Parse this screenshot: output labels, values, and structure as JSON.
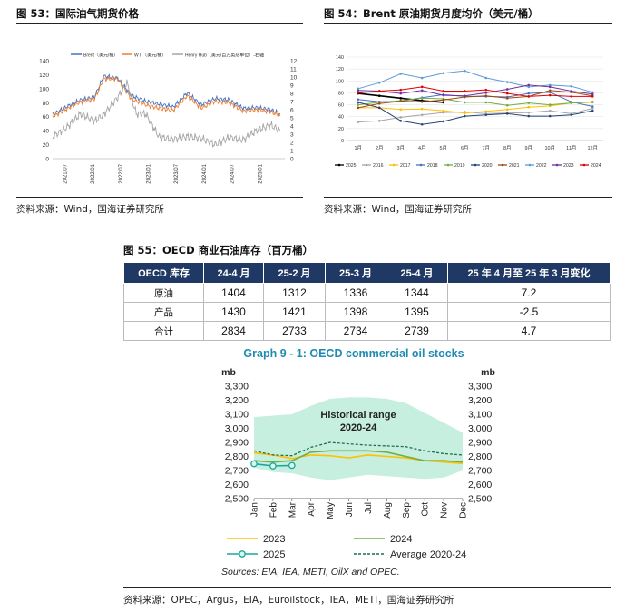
{
  "fig53": {
    "title": "图 53：国际油气期货价格",
    "source": "资料来源：Wind，国海证券研究所",
    "chart_data": {
      "type": "line",
      "x_tick_labels": [
        "2021/07",
        "2022/01",
        "2022/07",
        "2023/01",
        "2023/07",
        "2024/01",
        "2024/07",
        "2025/01"
      ],
      "y_left_ticks": [
        "0",
        "20",
        "40",
        "60",
        "80",
        "100",
        "120",
        "140"
      ],
      "y_right_ticks": [
        "0",
        "1",
        "2",
        "3",
        "4",
        "5",
        "6",
        "7",
        "8",
        "9",
        "10",
        "11",
        "12"
      ],
      "ylim_left": [
        0,
        140
      ],
      "ylim_right": [
        0,
        12
      ],
      "series": [
        {
          "name": "Brent（美元/桶）",
          "color": "#4472c4",
          "axis": "left",
          "x": [
            "2021/04",
            "2021/07",
            "2021/10",
            "2022/01",
            "2022/03",
            "2022/06",
            "2022/09",
            "2022/12",
            "2023/03",
            "2023/06",
            "2023/09",
            "2023/12",
            "2024/03",
            "2024/06",
            "2024/09",
            "2024/12",
            "2025/03",
            "2025/05"
          ],
          "values": [
            63,
            74,
            84,
            88,
            118,
            115,
            90,
            82,
            78,
            74,
            94,
            77,
            86,
            84,
            72,
            73,
            70,
            64
          ]
        },
        {
          "name": "WTI（美元/桶）",
          "color": "#ed7d31",
          "axis": "left",
          "x": [
            "2021/04",
            "2021/07",
            "2021/10",
            "2022/01",
            "2022/03",
            "2022/06",
            "2022/09",
            "2022/12",
            "2023/03",
            "2023/06",
            "2023/09",
            "2023/12",
            "2024/03",
            "2024/06",
            "2024/09",
            "2024/12",
            "2025/03",
            "2025/05"
          ],
          "values": [
            60,
            71,
            81,
            85,
            114,
            114,
            85,
            77,
            72,
            69,
            90,
            72,
            82,
            80,
            68,
            70,
            67,
            61
          ]
        },
        {
          "name": "Henry Hub（美元/百万英热单位）-右轴",
          "color": "#a5a5a5",
          "axis": "right",
          "x": [
            "2021/04",
            "2021/07",
            "2021/10",
            "2022/01",
            "2022/03",
            "2022/06",
            "2022/08",
            "2022/10",
            "2022/12",
            "2023/03",
            "2023/06",
            "2023/09",
            "2023/12",
            "2024/03",
            "2024/06",
            "2024/09",
            "2024/12",
            "2025/03",
            "2025/05"
          ],
          "values": [
            2.7,
            3.8,
            5.5,
            4.6,
            5.4,
            7.5,
            9.3,
            5.5,
            5.5,
            2.6,
            2.4,
            2.7,
            2.5,
            1.7,
            2.6,
            2.3,
            3.5,
            4.1,
            3.4
          ]
        }
      ]
    }
  },
  "fig54": {
    "title": "图 54：Brent 原油期货月度均价（美元/桶）",
    "source": "资料来源：Wind，国海证券研究所",
    "chart_data": {
      "type": "line",
      "categories": [
        "1月",
        "2月",
        "3月",
        "4月",
        "5月",
        "6月",
        "7月",
        "8月",
        "9月",
        "10月",
        "11月",
        "12月"
      ],
      "y_ticks": [
        "0",
        "20",
        "40",
        "60",
        "80",
        "100",
        "120",
        "140"
      ],
      "ylim": [
        0,
        140
      ],
      "series": [
        {
          "name": "2025",
          "color": "#000000",
          "values": [
            79,
            75,
            71,
            67,
            64,
            null,
            null,
            null,
            null,
            null,
            null,
            null
          ]
        },
        {
          "name": "2016",
          "color": "#a5a5a5",
          "values": [
            31,
            33,
            39,
            43,
            47,
            48,
            45,
            46,
            47,
            50,
            45,
            54
          ]
        },
        {
          "name": "2017",
          "color": "#ffc000",
          "values": [
            55,
            55,
            52,
            53,
            50,
            46,
            49,
            52,
            56,
            58,
            63,
            64
          ]
        },
        {
          "name": "2018",
          "color": "#4472c4",
          "values": [
            69,
            65,
            66,
            72,
            77,
            74,
            74,
            73,
            79,
            81,
            65,
            57
          ]
        },
        {
          "name": "2019",
          "color": "#70ad47",
          "values": [
            60,
            64,
            67,
            71,
            70,
            64,
            64,
            59,
            63,
            60,
            63,
            65
          ]
        },
        {
          "name": "2020",
          "color": "#264478",
          "values": [
            64,
            55,
            33,
            27,
            32,
            41,
            43,
            45,
            41,
            41,
            43,
            50
          ]
        },
        {
          "name": "2021",
          "color": "#9e480e",
          "values": [
            55,
            62,
            66,
            65,
            68,
            73,
            75,
            71,
            74,
            84,
            81,
            75
          ]
        },
        {
          "name": "2022",
          "color": "#5b9bd5",
          "values": [
            87,
            97,
            112,
            105,
            113,
            117,
            105,
            98,
            90,
            93,
            91,
            81
          ]
        },
        {
          "name": "2023",
          "color": "#7030a0",
          "values": [
            84,
            83,
            79,
            84,
            76,
            75,
            80,
            86,
            93,
            90,
            83,
            78
          ]
        },
        {
          "name": "2024",
          "color": "#e00000",
          "values": [
            80,
            83,
            85,
            90,
            83,
            83,
            85,
            79,
            74,
            76,
            74,
            74
          ]
        }
      ]
    }
  },
  "fig55": {
    "title": "图 55：OECD 商业石油库存（百万桶）",
    "headers": [
      "OECD 库存",
      "24-4 月",
      "25-2 月",
      "25-3 月",
      "25-4 月",
      "25 年 4 月至 25 年 3 月变化"
    ],
    "rows": [
      {
        "label": "原油",
        "cells": [
          "1404",
          "1312",
          "1336",
          "1344",
          "7.2"
        ]
      },
      {
        "label": "产品",
        "cells": [
          "1430",
          "1421",
          "1398",
          "1395",
          "-2.5"
        ]
      },
      {
        "label": "合计",
        "cells": [
          "2834",
          "2733",
          "2734",
          "2739",
          "4.7"
        ]
      }
    ]
  },
  "graph9": {
    "title": "Graph 9 - 1: OECD commercial oil stocks",
    "unit_left": "mb",
    "unit_right": "mb",
    "range_label_line1": "Historical range",
    "range_label_line2": "2020-24",
    "sources_note": "Sources: EIA, IEA, METI, OilX and OPEC.",
    "chart_data": {
      "type": "area",
      "categories": [
        "Jan",
        "Feb",
        "Mar",
        "Apr",
        "May",
        "Jun",
        "Jul",
        "Aug",
        "Sep",
        "Oct",
        "Nov",
        "Dec"
      ],
      "y_ticks": [
        "2,500",
        "2,600",
        "2,700",
        "2,800",
        "2,900",
        "3,000",
        "3,100",
        "3,200",
        "3,300"
      ],
      "ylim": [
        2500,
        3300
      ],
      "range_color": "#c6efdf",
      "range_low": [
        2720,
        2690,
        2680,
        2650,
        2630,
        2650,
        2670,
        2660,
        2650,
        2640,
        2650,
        2700
      ],
      "range_high": [
        3080,
        3090,
        3100,
        3160,
        3210,
        3220,
        3220,
        3210,
        3180,
        3110,
        3040,
        2970
      ],
      "series": [
        {
          "name": "2023",
          "color": "#ffc000",
          "values": [
            2825,
            2810,
            2785,
            2810,
            2805,
            2790,
            2810,
            2800,
            2790,
            2770,
            2760,
            2750
          ]
        },
        {
          "name": "2024",
          "color": "#70ad47",
          "values": [
            2770,
            2760,
            2770,
            2830,
            2840,
            2840,
            2840,
            2830,
            2800,
            2770,
            2770,
            2760
          ]
        },
        {
          "name": "2025",
          "color": "#18a89a",
          "values": [
            2748,
            2732,
            2736,
            null,
            null,
            null,
            null,
            null,
            null,
            null,
            null,
            null
          ]
        },
        {
          "name": "Average 2020-24",
          "color": "#1f6d4e",
          "dashed": true,
          "values": [
            2840,
            2810,
            2805,
            2865,
            2900,
            2890,
            2880,
            2875,
            2870,
            2840,
            2820,
            2810
          ]
        }
      ]
    }
  },
  "page_source": "资料来源：OPEC，Argus，EIA，Euroilstock，IEA，METI，国海证券研究所"
}
